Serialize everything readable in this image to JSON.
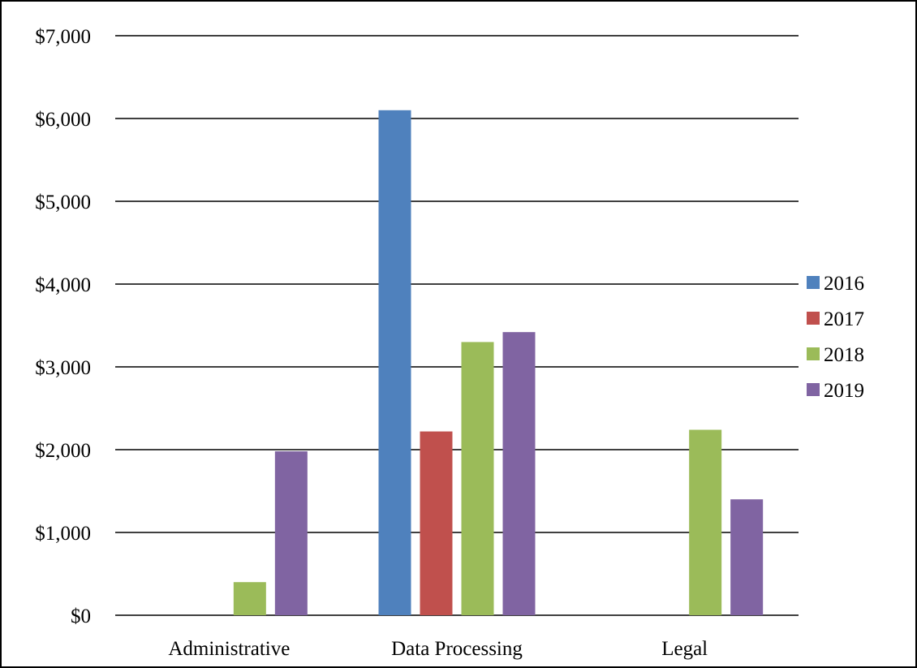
{
  "chart_data": {
    "type": "bar",
    "title": "",
    "xlabel": "",
    "ylabel": "",
    "categories": [
      "Administrative",
      "Data Processing",
      "Legal"
    ],
    "series": [
      {
        "name": "2016",
        "color": "#4F81BD",
        "values": [
          0,
          6100,
          0
        ]
      },
      {
        "name": "2017",
        "color": "#C0504D",
        "values": [
          0,
          2220,
          0
        ]
      },
      {
        "name": "2018",
        "color": "#9BBB59",
        "values": [
          400,
          3300,
          2240
        ]
      },
      {
        "name": "2019",
        "color": "#8064A2",
        "values": [
          1980,
          3420,
          1400
        ]
      }
    ],
    "ylim": [
      0,
      7000
    ],
    "y_ticks": [
      0,
      1000,
      2000,
      3000,
      4000,
      5000,
      6000,
      7000
    ],
    "y_tick_labels": [
      "$0",
      "$1,000",
      "$2,000",
      "$3,000",
      "$4,000",
      "$5,000",
      "$6,000",
      "$7,000"
    ],
    "grid": true,
    "legend_position": "right"
  }
}
